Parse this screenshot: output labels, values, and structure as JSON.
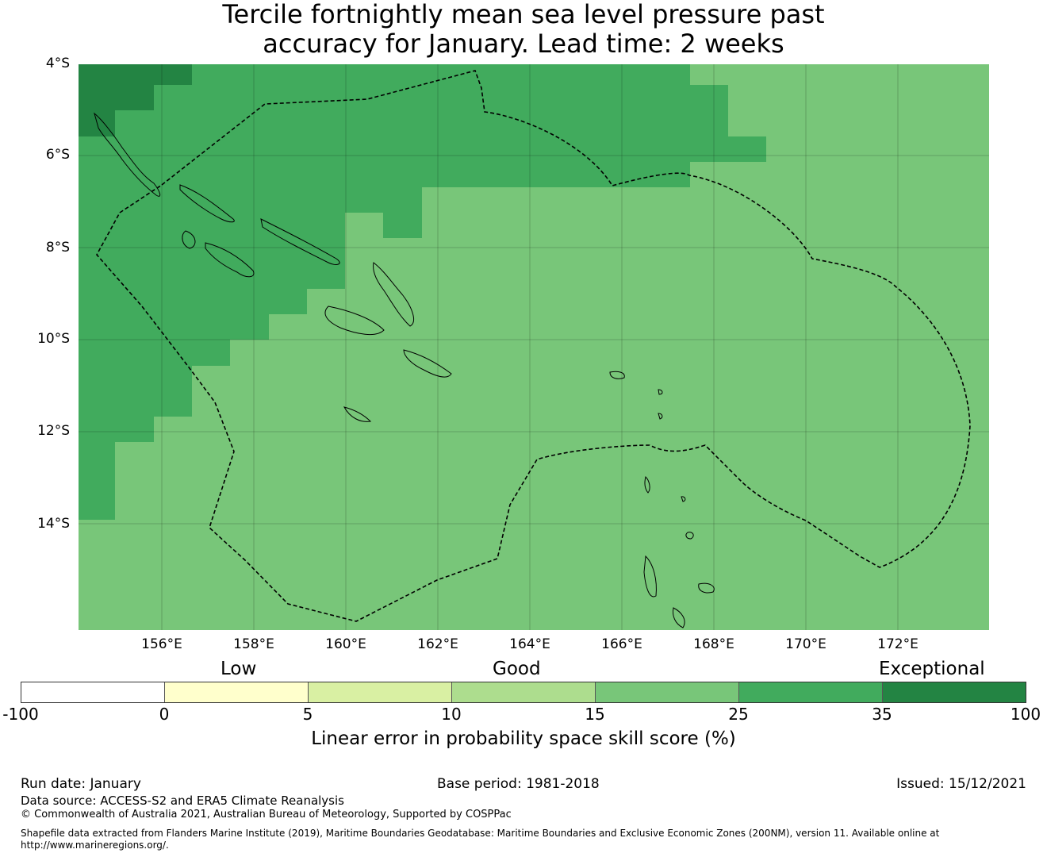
{
  "title": {
    "line1": "Tercile fortnightly mean sea level pressure past",
    "line2": "accuracy for January. Lead time: 2 weeks"
  },
  "map": {
    "lat_labels": [
      "4°S",
      "6°S",
      "8°S",
      "10°S",
      "12°S",
      "14°S"
    ],
    "lon_labels": [
      "156°E",
      "158°E",
      "160°E",
      "162°E",
      "164°E",
      "166°E",
      "168°E",
      "170°E",
      "172°E"
    ],
    "colors": {
      "background_class": "#78c679",
      "class_35_100": "#238443",
      "class_25_35": "#41ab5d",
      "boundary": "#000000"
    },
    "icons": {
      "coastline": "coastline-icon",
      "maritime_boundary": "eez-boundary-icon"
    }
  },
  "legend": {
    "category_labels": [
      "Low",
      "Good",
      "Exceptional"
    ],
    "segments": [
      {
        "range": "-100 to 0",
        "color": "#ffffff"
      },
      {
        "range": "0 to 5",
        "color": "#ffffcc"
      },
      {
        "range": "5 to 10",
        "color": "#d9f0a3"
      },
      {
        "range": "10 to 15",
        "color": "#addd8e"
      },
      {
        "range": "15 to 25",
        "color": "#78c679"
      },
      {
        "range": "25 to 35",
        "color": "#41ab5d"
      },
      {
        "range": "35 to 100",
        "color": "#238443"
      }
    ],
    "ticks": [
      "-100",
      "0",
      "5",
      "10",
      "15",
      "25",
      "35",
      "100"
    ],
    "label": "Linear error in probability space skill score (%)"
  },
  "footer": {
    "run_date": "Run date: January",
    "base_period": "Base period: 1981-2018",
    "issued": "Issued: 15/12/2021",
    "data_source": "Data source: ACCESS-S2 and ERA5 Climate Reanalysis",
    "copyright": "© Commonwealth of Australia 2021, Australian Bureau of Meteorology, Supported by COSPPac",
    "shapefile": "Shapefile data extracted from Flanders Marine Institute (2019), Maritime Boundaries Geodatabase: Maritime Boundaries and Exclusive Economic Zones (200NM), version 11. Available online at http://www.marineregions.org/."
  }
}
